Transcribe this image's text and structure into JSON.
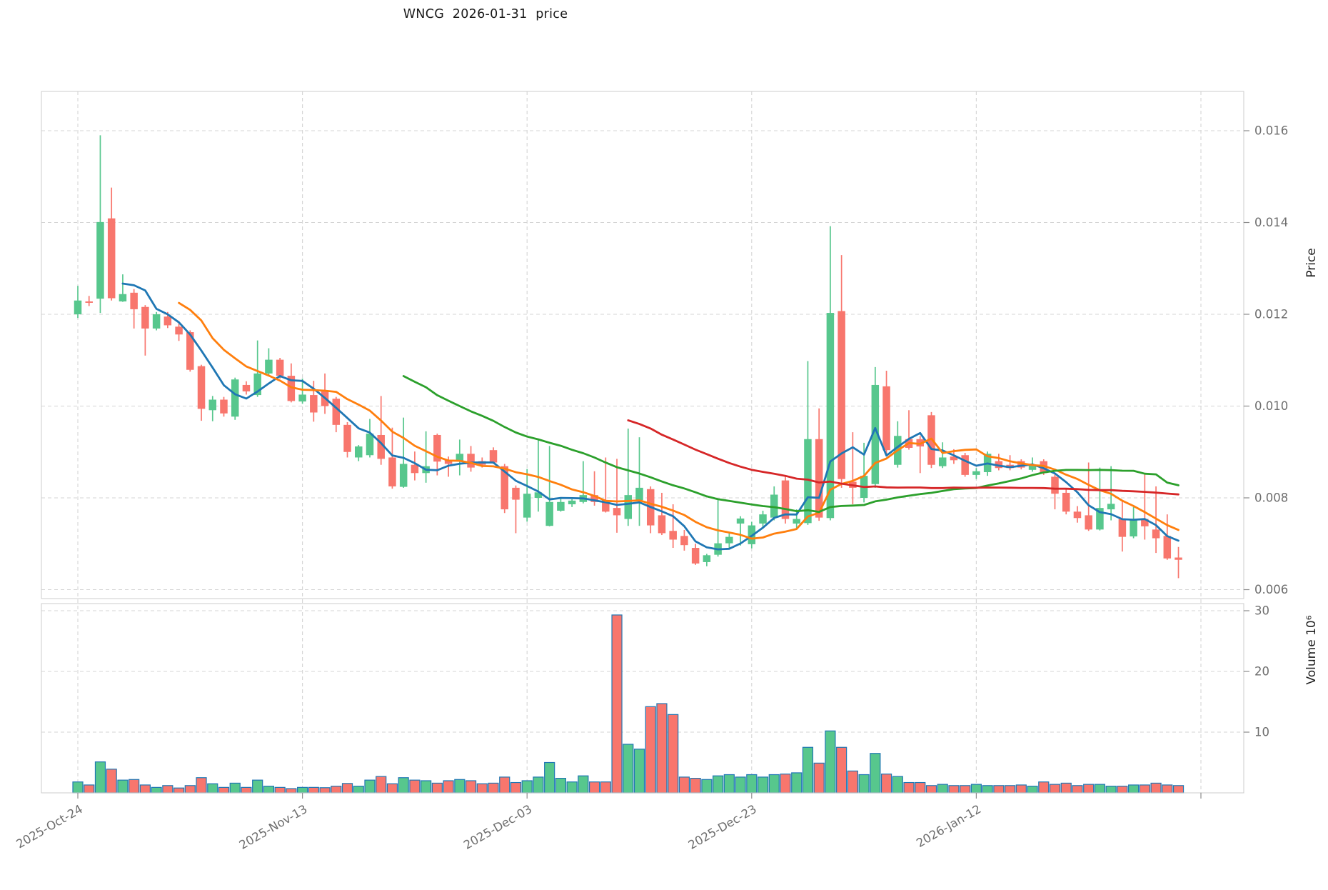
{
  "chart_data": {
    "type": "candlestick",
    "title": "WNCG  2026-01-31  price",
    "legend_position": "none",
    "grid": true,
    "colors": {
      "up": "#57c78d",
      "down": "#f8766d",
      "volume_edge": "#1f77b4",
      "gridline": "#d4d4d4",
      "spine": "#cccccc",
      "tick_text": "#6e6e6e",
      "title_text": "#1a1a1a",
      "axis_label_text": "#1f1f1f"
    },
    "price_axis": {
      "label": "Price",
      "side": "right",
      "ticks": [
        {
          "value": 0.016,
          "label": "0.016"
        },
        {
          "value": 0.014,
          "label": "0.014"
        },
        {
          "value": 0.012,
          "label": "0.012"
        },
        {
          "value": 0.01,
          "label": "0.010"
        },
        {
          "value": 0.008,
          "label": "0.008"
        },
        {
          "value": 0.006,
          "label": "0.006"
        }
      ],
      "ylim": [
        0.00581,
        0.01686
      ]
    },
    "volume_axis": {
      "label": "Volume  10⁶",
      "side": "right",
      "unit": 1000000,
      "ticks": [
        {
          "value": 30,
          "label": "30"
        },
        {
          "value": 20,
          "label": "20"
        },
        {
          "value": 10,
          "label": "10"
        }
      ],
      "ylim": [
        0,
        32
      ]
    },
    "x_ticks": [
      {
        "i": 0,
        "label": "2025-Oct-24"
      },
      {
        "i": 20,
        "label": "2025-Nov-13"
      },
      {
        "i": 40,
        "label": "2025-Dec-03"
      },
      {
        "i": 60,
        "label": "2025-Dec-23"
      },
      {
        "i": 80,
        "label": "2026-Jan-12"
      },
      {
        "i": 100,
        "label": ""
      }
    ],
    "ma_overlays": [
      {
        "name": "SMA5",
        "window": 5,
        "color": "#1f77b4"
      },
      {
        "name": "SMA10",
        "window": 10,
        "color": "#ff7f0e"
      },
      {
        "name": "SMA30",
        "window": 30,
        "color": "#2ca02c"
      },
      {
        "name": "SMA50",
        "window": 50,
        "color": "#d62728"
      }
    ],
    "candles": [
      {
        "d": "2025-10-24",
        "o": 0.012,
        "h": 0.01262,
        "l": 0.01192,
        "c": 0.0123,
        "v": 1.8
      },
      {
        "d": "2025-10-25",
        "o": 0.01228,
        "h": 0.0124,
        "l": 0.01218,
        "c": 0.01225,
        "v": 1.3
      },
      {
        "d": "2025-10-26",
        "o": 0.01234,
        "h": 0.0159,
        "l": 0.01203,
        "c": 0.01401,
        "v": 5.1
      },
      {
        "d": "2025-10-27",
        "o": 0.01409,
        "h": 0.01476,
        "l": 0.0123,
        "c": 0.01235,
        "v": 3.9
      },
      {
        "d": "2025-10-28",
        "o": 0.01228,
        "h": 0.01287,
        "l": 0.01227,
        "c": 0.01244,
        "v": 2.1
      },
      {
        "d": "2025-10-29",
        "o": 0.01247,
        "h": 0.01255,
        "l": 0.01169,
        "c": 0.01211,
        "v": 2.2
      },
      {
        "d": "2025-10-30",
        "o": 0.01216,
        "h": 0.0122,
        "l": 0.0111,
        "c": 0.01169,
        "v": 1.3
      },
      {
        "d": "2025-10-31",
        "o": 0.01169,
        "h": 0.01205,
        "l": 0.01165,
        "c": 0.012,
        "v": 0.9
      },
      {
        "d": "2025-11-01",
        "o": 0.01195,
        "h": 0.01205,
        "l": 0.0117,
        "c": 0.01176,
        "v": 1.2
      },
      {
        "d": "2025-11-02",
        "o": 0.01173,
        "h": 0.0118,
        "l": 0.01142,
        "c": 0.01156,
        "v": 0.8
      },
      {
        "d": "2025-11-03",
        "o": 0.01161,
        "h": 0.01165,
        "l": 0.01075,
        "c": 0.01079,
        "v": 1.2
      },
      {
        "d": "2025-11-04",
        "o": 0.01087,
        "h": 0.0109,
        "l": 0.00968,
        "c": 0.00994,
        "v": 2.5
      },
      {
        "d": "2025-11-05",
        "o": 0.00991,
        "h": 0.01022,
        "l": 0.00967,
        "c": 0.01014,
        "v": 1.5
      },
      {
        "d": "2025-11-06",
        "o": 0.01014,
        "h": 0.0102,
        "l": 0.00977,
        "c": 0.00984,
        "v": 0.9
      },
      {
        "d": "2025-11-07",
        "o": 0.00977,
        "h": 0.01062,
        "l": 0.0097,
        "c": 0.01058,
        "v": 1.6
      },
      {
        "d": "2025-11-08",
        "o": 0.01046,
        "h": 0.01054,
        "l": 0.01025,
        "c": 0.01032,
        "v": 0.9
      },
      {
        "d": "2025-11-09",
        "o": 0.01024,
        "h": 0.01143,
        "l": 0.0102,
        "c": 0.01071,
        "v": 2.1
      },
      {
        "d": "2025-11-10",
        "o": 0.01071,
        "h": 0.01126,
        "l": 0.01066,
        "c": 0.01101,
        "v": 1.1
      },
      {
        "d": "2025-11-11",
        "o": 0.01101,
        "h": 0.01105,
        "l": 0.0106,
        "c": 0.01066,
        "v": 0.9
      },
      {
        "d": "2025-11-12",
        "o": 0.01066,
        "h": 0.01093,
        "l": 0.01008,
        "c": 0.01011,
        "v": 0.7
      },
      {
        "d": "2025-11-13",
        "o": 0.0101,
        "h": 0.0106,
        "l": 0.01005,
        "c": 0.01025,
        "v": 0.9
      },
      {
        "d": "2025-11-14",
        "o": 0.01024,
        "h": 0.01055,
        "l": 0.00966,
        "c": 0.00986,
        "v": 0.9
      },
      {
        "d": "2025-11-15",
        "o": 0.01033,
        "h": 0.01071,
        "l": 0.00983,
        "c": 0.01,
        "v": 0.85
      },
      {
        "d": "2025-11-16",
        "o": 0.01016,
        "h": 0.0102,
        "l": 0.00943,
        "c": 0.00959,
        "v": 1.1
      },
      {
        "d": "2025-11-17",
        "o": 0.00959,
        "h": 0.00965,
        "l": 0.00888,
        "c": 0.009,
        "v": 1.55
      },
      {
        "d": "2025-11-18",
        "o": 0.00888,
        "h": 0.00915,
        "l": 0.0088,
        "c": 0.00912,
        "v": 1.1
      },
      {
        "d": "2025-11-19",
        "o": 0.00893,
        "h": 0.00972,
        "l": 0.00888,
        "c": 0.0094,
        "v": 2.1
      },
      {
        "d": "2025-11-20",
        "o": 0.00937,
        "h": 0.01022,
        "l": 0.00872,
        "c": 0.00885,
        "v": 2.7
      },
      {
        "d": "2025-11-21",
        "o": 0.00888,
        "h": 0.00953,
        "l": 0.0082,
        "c": 0.00825,
        "v": 1.5
      },
      {
        "d": "2025-11-22",
        "o": 0.00824,
        "h": 0.00975,
        "l": 0.00822,
        "c": 0.00874,
        "v": 2.5
      },
      {
        "d": "2025-11-23",
        "o": 0.00872,
        "h": 0.00901,
        "l": 0.00838,
        "c": 0.00854,
        "v": 2.1
      },
      {
        "d": "2025-11-24",
        "o": 0.00854,
        "h": 0.00945,
        "l": 0.00833,
        "c": 0.00869,
        "v": 2.0
      },
      {
        "d": "2025-11-25",
        "o": 0.00937,
        "h": 0.0094,
        "l": 0.00849,
        "c": 0.00879,
        "v": 1.6
      },
      {
        "d": "2025-11-26",
        "o": 0.00882,
        "h": 0.0089,
        "l": 0.00846,
        "c": 0.00874,
        "v": 2.0
      },
      {
        "d": "2025-11-27",
        "o": 0.0088,
        "h": 0.00927,
        "l": 0.00849,
        "c": 0.00896,
        "v": 2.2
      },
      {
        "d": "2025-11-28",
        "o": 0.00896,
        "h": 0.00913,
        "l": 0.00857,
        "c": 0.00866,
        "v": 2.0
      },
      {
        "d": "2025-11-29",
        "o": 0.0088,
        "h": 0.00888,
        "l": 0.00866,
        "c": 0.00872,
        "v": 1.5
      },
      {
        "d": "2025-11-30",
        "o": 0.00904,
        "h": 0.0091,
        "l": 0.00874,
        "c": 0.00877,
        "v": 1.6
      },
      {
        "d": "2025-12-01",
        "o": 0.00869,
        "h": 0.00874,
        "l": 0.00767,
        "c": 0.00775,
        "v": 2.6
      },
      {
        "d": "2025-12-02",
        "o": 0.00822,
        "h": 0.00827,
        "l": 0.00723,
        "c": 0.00796,
        "v": 1.7
      },
      {
        "d": "2025-12-03",
        "o": 0.00757,
        "h": 0.00863,
        "l": 0.00748,
        "c": 0.00809,
        "v": 2.0
      },
      {
        "d": "2025-12-04",
        "o": 0.008,
        "h": 0.00927,
        "l": 0.0077,
        "c": 0.00812,
        "v": 2.6
      },
      {
        "d": "2025-12-05",
        "o": 0.00739,
        "h": 0.00913,
        "l": 0.00738,
        "c": 0.00791,
        "v": 5.0
      },
      {
        "d": "2025-12-06",
        "o": 0.00772,
        "h": 0.00798,
        "l": 0.0077,
        "c": 0.00791,
        "v": 2.4
      },
      {
        "d": "2025-12-07",
        "o": 0.00786,
        "h": 0.00797,
        "l": 0.0078,
        "c": 0.00794,
        "v": 1.8
      },
      {
        "d": "2025-12-08",
        "o": 0.00791,
        "h": 0.0088,
        "l": 0.00788,
        "c": 0.00806,
        "v": 2.8
      },
      {
        "d": "2025-12-09",
        "o": 0.00806,
        "h": 0.00858,
        "l": 0.00783,
        "c": 0.00791,
        "v": 1.8
      },
      {
        "d": "2025-12-10",
        "o": 0.00795,
        "h": 0.00888,
        "l": 0.00768,
        "c": 0.0077,
        "v": 1.8
      },
      {
        "d": "2025-12-11",
        "o": 0.00778,
        "h": 0.00885,
        "l": 0.00724,
        "c": 0.00762,
        "v": 29.3
      },
      {
        "d": "2025-12-12",
        "o": 0.00754,
        "h": 0.00951,
        "l": 0.00739,
        "c": 0.00806,
        "v": 8.0
      },
      {
        "d": "2025-12-13",
        "o": 0.00795,
        "h": 0.00932,
        "l": 0.00739,
        "c": 0.00822,
        "v": 7.2
      },
      {
        "d": "2025-12-14",
        "o": 0.00819,
        "h": 0.00825,
        "l": 0.00723,
        "c": 0.0074,
        "v": 14.2
      },
      {
        "d": "2025-12-15",
        "o": 0.00762,
        "h": 0.00811,
        "l": 0.00719,
        "c": 0.00723,
        "v": 14.7
      },
      {
        "d": "2025-12-16",
        "o": 0.00728,
        "h": 0.00786,
        "l": 0.00691,
        "c": 0.00709,
        "v": 12.9
      },
      {
        "d": "2025-12-17",
        "o": 0.00717,
        "h": 0.0073,
        "l": 0.00685,
        "c": 0.00697,
        "v": 2.6
      },
      {
        "d": "2025-12-18",
        "o": 0.00691,
        "h": 0.007,
        "l": 0.00654,
        "c": 0.00657,
        "v": 2.4
      },
      {
        "d": "2025-12-19",
        "o": 0.0066,
        "h": 0.00678,
        "l": 0.00651,
        "c": 0.00675,
        "v": 2.2
      },
      {
        "d": "2025-12-20",
        "o": 0.00676,
        "h": 0.00795,
        "l": 0.00672,
        "c": 0.00701,
        "v": 2.8
      },
      {
        "d": "2025-12-21",
        "o": 0.00701,
        "h": 0.00724,
        "l": 0.00691,
        "c": 0.00715,
        "v": 3.0
      },
      {
        "d": "2025-12-22",
        "o": 0.00744,
        "h": 0.0076,
        "l": 0.00696,
        "c": 0.00755,
        "v": 2.6
      },
      {
        "d": "2025-12-23",
        "o": 0.00699,
        "h": 0.00748,
        "l": 0.0069,
        "c": 0.0074,
        "v": 3.0
      },
      {
        "d": "2025-12-24",
        "o": 0.00744,
        "h": 0.00772,
        "l": 0.00733,
        "c": 0.00764,
        "v": 2.6
      },
      {
        "d": "2025-12-25",
        "o": 0.00757,
        "h": 0.00825,
        "l": 0.00751,
        "c": 0.00807,
        "v": 3.0
      },
      {
        "d": "2025-12-26",
        "o": 0.00838,
        "h": 0.00846,
        "l": 0.00744,
        "c": 0.00754,
        "v": 3.1
      },
      {
        "d": "2025-12-27",
        "o": 0.00744,
        "h": 0.00775,
        "l": 0.00733,
        "c": 0.00754,
        "v": 3.3
      },
      {
        "d": "2025-12-28",
        "o": 0.00745,
        "h": 0.01098,
        "l": 0.00741,
        "c": 0.00928,
        "v": 7.5
      },
      {
        "d": "2025-12-29",
        "o": 0.00928,
        "h": 0.00995,
        "l": 0.0075,
        "c": 0.00757,
        "v": 4.9
      },
      {
        "d": "2025-12-30",
        "o": 0.00756,
        "h": 0.01392,
        "l": 0.00751,
        "c": 0.01203,
        "v": 10.2
      },
      {
        "d": "2025-12-31",
        "o": 0.01207,
        "h": 0.01329,
        "l": 0.00822,
        "c": 0.00841,
        "v": 7.5
      },
      {
        "d": "2026-01-01",
        "o": 0.00835,
        "h": 0.00943,
        "l": 0.00786,
        "c": 0.00822,
        "v": 3.6
      },
      {
        "d": "2026-01-02",
        "o": 0.008,
        "h": 0.0092,
        "l": 0.0079,
        "c": 0.00848,
        "v": 3.0
      },
      {
        "d": "2026-01-03",
        "o": 0.0083,
        "h": 0.01085,
        "l": 0.00822,
        "c": 0.01046,
        "v": 6.5
      },
      {
        "d": "2026-01-04",
        "o": 0.01043,
        "h": 0.01077,
        "l": 0.00896,
        "c": 0.00904,
        "v": 3.1
      },
      {
        "d": "2026-01-05",
        "o": 0.00872,
        "h": 0.00967,
        "l": 0.00866,
        "c": 0.00935,
        "v": 2.7
      },
      {
        "d": "2026-01-06",
        "o": 0.00928,
        "h": 0.00991,
        "l": 0.00905,
        "c": 0.00909,
        "v": 1.7
      },
      {
        "d": "2026-01-07",
        "o": 0.00928,
        "h": 0.00935,
        "l": 0.00854,
        "c": 0.00912,
        "v": 1.7
      },
      {
        "d": "2026-01-08",
        "o": 0.0098,
        "h": 0.00987,
        "l": 0.00865,
        "c": 0.00872,
        "v": 1.2
      },
      {
        "d": "2026-01-09",
        "o": 0.00869,
        "h": 0.00921,
        "l": 0.00865,
        "c": 0.00888,
        "v": 1.4
      },
      {
        "d": "2026-01-10",
        "o": 0.0089,
        "h": 0.00906,
        "l": 0.00874,
        "c": 0.00882,
        "v": 1.2
      },
      {
        "d": "2026-01-11",
        "o": 0.00893,
        "h": 0.00898,
        "l": 0.00846,
        "c": 0.0085,
        "v": 1.2
      },
      {
        "d": "2026-01-12",
        "o": 0.0085,
        "h": 0.00865,
        "l": 0.00841,
        "c": 0.00858,
        "v": 1.4
      },
      {
        "d": "2026-01-13",
        "o": 0.00856,
        "h": 0.00901,
        "l": 0.00848,
        "c": 0.00896,
        "v": 1.2
      },
      {
        "d": "2026-01-14",
        "o": 0.0088,
        "h": 0.00896,
        "l": 0.0086,
        "c": 0.00865,
        "v": 1.2
      },
      {
        "d": "2026-01-15",
        "o": 0.00872,
        "h": 0.00893,
        "l": 0.0086,
        "c": 0.00865,
        "v": 1.2
      },
      {
        "d": "2026-01-16",
        "o": 0.0088,
        "h": 0.00884,
        "l": 0.00862,
        "c": 0.00866,
        "v": 1.3
      },
      {
        "d": "2026-01-17",
        "o": 0.00861,
        "h": 0.00888,
        "l": 0.00857,
        "c": 0.00872,
        "v": 1.1
      },
      {
        "d": "2026-01-18",
        "o": 0.0088,
        "h": 0.00884,
        "l": 0.0085,
        "c": 0.00854,
        "v": 1.8
      },
      {
        "d": "2026-01-19",
        "o": 0.00846,
        "h": 0.00851,
        "l": 0.00775,
        "c": 0.00809,
        "v": 1.4
      },
      {
        "d": "2026-01-20",
        "o": 0.00811,
        "h": 0.0082,
        "l": 0.00764,
        "c": 0.0077,
        "v": 1.6
      },
      {
        "d": "2026-01-21",
        "o": 0.0077,
        "h": 0.00782,
        "l": 0.00746,
        "c": 0.00756,
        "v": 1.2
      },
      {
        "d": "2026-01-22",
        "o": 0.00762,
        "h": 0.00877,
        "l": 0.00728,
        "c": 0.00731,
        "v": 1.4
      },
      {
        "d": "2026-01-23",
        "o": 0.00731,
        "h": 0.00866,
        "l": 0.00729,
        "c": 0.00778,
        "v": 1.4
      },
      {
        "d": "2026-01-24",
        "o": 0.00775,
        "h": 0.00869,
        "l": 0.00751,
        "c": 0.00787,
        "v": 1.1
      },
      {
        "d": "2026-01-25",
        "o": 0.00754,
        "h": 0.00794,
        "l": 0.00683,
        "c": 0.00715,
        "v": 1.1
      },
      {
        "d": "2026-01-26",
        "o": 0.00716,
        "h": 0.0078,
        "l": 0.00712,
        "c": 0.00751,
        "v": 1.3
      },
      {
        "d": "2026-01-27",
        "o": 0.00754,
        "h": 0.00854,
        "l": 0.00709,
        "c": 0.00738,
        "v": 1.3
      },
      {
        "d": "2026-01-28",
        "o": 0.00731,
        "h": 0.00825,
        "l": 0.0068,
        "c": 0.00712,
        "v": 1.6
      },
      {
        "d": "2026-01-29",
        "o": 0.00717,
        "h": 0.00764,
        "l": 0.00665,
        "c": 0.00668,
        "v": 1.3
      },
      {
        "d": "2026-01-30",
        "o": 0.0067,
        "h": 0.00693,
        "l": 0.00625,
        "c": 0.00665,
        "v": 1.2
      }
    ]
  }
}
